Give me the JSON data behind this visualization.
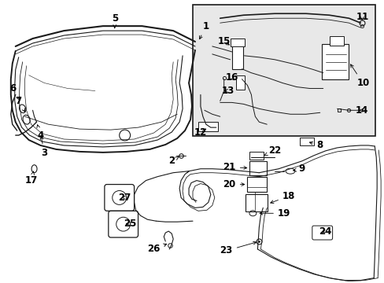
{
  "background_color": "#ffffff",
  "line_color": "#1a1a1a",
  "text_color": "#000000",
  "inset_bg": "#e8e8e8",
  "font_size": 8.5,
  "arrow_color": "#000000"
}
